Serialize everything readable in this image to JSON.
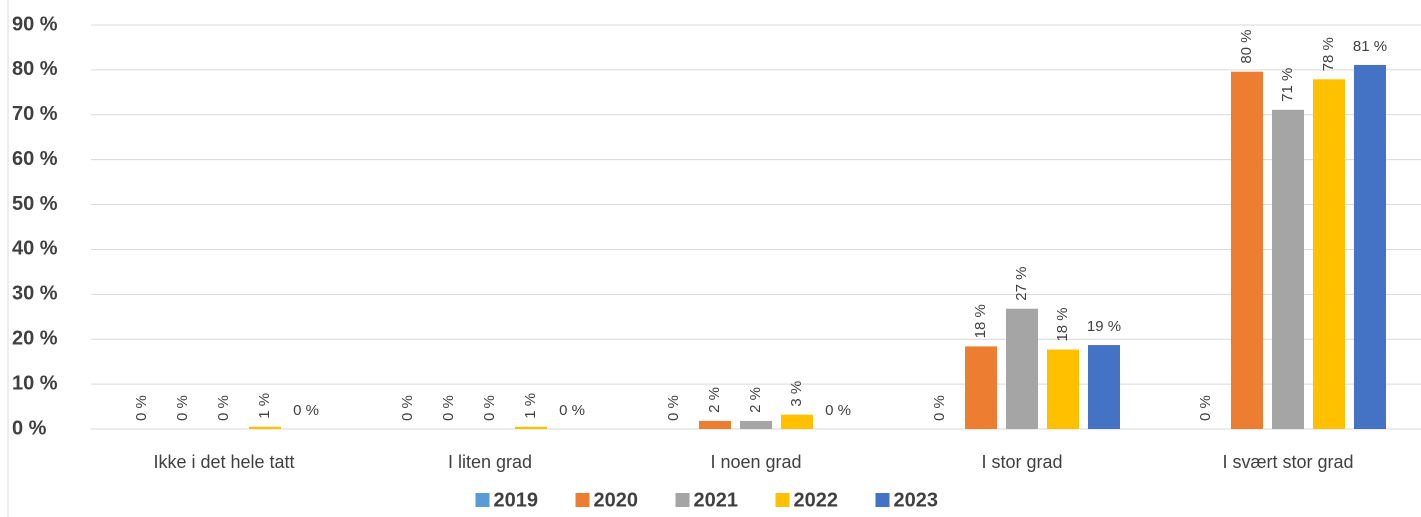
{
  "chart_data": {
    "type": "bar",
    "categories": [
      "Ikke i det hele tatt",
      "I liten grad",
      "I noen grad",
      "I stor grad",
      "I svært stor grad"
    ],
    "series": [
      {
        "name": "2019",
        "color": "#5b9bd5",
        "values": [
          0,
          0,
          0,
          0,
          0
        ],
        "value_labels": [
          "0 %",
          "0 %",
          "0 %",
          "0 %",
          "0 %"
        ]
      },
      {
        "name": "2020",
        "color": "#ed7d31",
        "values": [
          0,
          0,
          1.8,
          18.4,
          79.6
        ],
        "value_labels": [
          "0 %",
          "0 %",
          "2 %",
          "18 %",
          "80 %"
        ]
      },
      {
        "name": "2021",
        "color": "#a5a5a5",
        "values": [
          0,
          0,
          1.8,
          26.8,
          71.1
        ],
        "value_labels": [
          "0 %",
          "0 %",
          "2 %",
          "27 %",
          "71 %"
        ]
      },
      {
        "name": "2022",
        "color": "#ffc000",
        "values": [
          0.5,
          0.5,
          3.2,
          17.7,
          77.9
        ],
        "value_labels": [
          "1 %",
          "1 %",
          "3 %",
          "18 %",
          "78 %"
        ]
      },
      {
        "name": "2023",
        "color": "#4472c4",
        "values": [
          0,
          0,
          0,
          18.7,
          81.1
        ],
        "value_labels": [
          "0 %",
          "0 %",
          "0 %",
          "19 %",
          "81 %"
        ]
      }
    ],
    "ylim": [
      0,
      90
    ],
    "yticks": [
      {
        "value": 0,
        "label": "0 %"
      },
      {
        "value": 10,
        "label": "10 %"
      },
      {
        "value": 20,
        "label": "20 %"
      },
      {
        "value": 30,
        "label": "30 %"
      },
      {
        "value": 40,
        "label": "40 %"
      },
      {
        "value": 50,
        "label": "50 %"
      },
      {
        "value": 60,
        "label": "60 %"
      },
      {
        "value": 70,
        "label": "70 %"
      },
      {
        "value": 80,
        "label": "80 %"
      },
      {
        "value": 90,
        "label": "90 %"
      }
    ],
    "grid": true,
    "legend": "bottom"
  }
}
